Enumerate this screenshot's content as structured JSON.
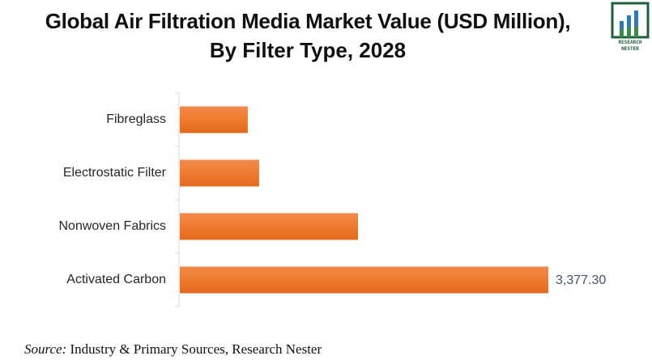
{
  "title_line1": "Global Air Filtration Media Market Value (USD Million),",
  "title_line2": "By Filter Type, 2028",
  "logo": {
    "line1": "RESEARCH",
    "line2": "NESTER"
  },
  "source": {
    "prefix": "Source:",
    "text": " Industry & Primary Sources, Research Nester"
  },
  "chart_data": {
    "type": "bar",
    "orientation": "horizontal",
    "title": "Global Air Filtration Media Market Value (USD Million), By Filter Type, 2028",
    "xlabel": "",
    "ylabel": "",
    "categories": [
      "Fibreglass",
      "Electrostatic Filter",
      "Nonwoven Fabrics",
      "Activated Carbon"
    ],
    "values": [
      623,
      727,
      1633,
      3377.3
    ],
    "data_labels": [
      "",
      "",
      "",
      "3,377.30"
    ],
    "xlim": [
      0,
      3377.3
    ],
    "grid": false,
    "legend": "none",
    "bar_color": "#ed7d31"
  }
}
